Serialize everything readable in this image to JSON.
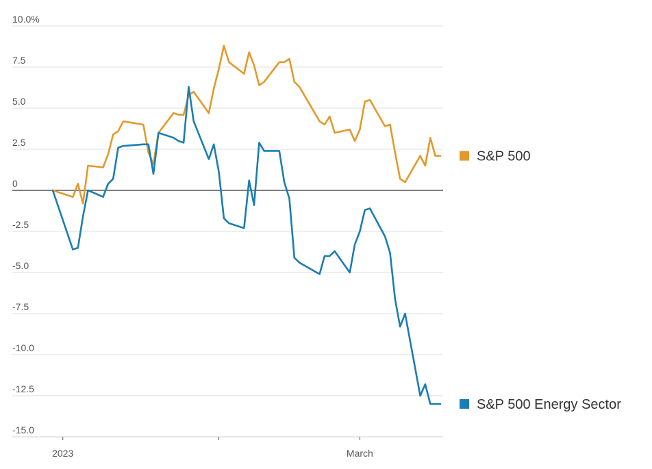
{
  "chart_data": {
    "type": "line",
    "title": "",
    "xlabel": "",
    "ylabel": "",
    "ylim": [
      -15,
      10
    ],
    "yticks": [
      {
        "value": 10,
        "label": "10.0%"
      },
      {
        "value": 7.5,
        "label": "7.5"
      },
      {
        "value": 5,
        "label": "5.0"
      },
      {
        "value": 2.5,
        "label": "2.5"
      },
      {
        "value": 0,
        "label": "0"
      },
      {
        "value": -2.5,
        "label": "-2.5"
      },
      {
        "value": -5,
        "label": "-5.0"
      },
      {
        "value": -7.5,
        "label": "-7.5"
      },
      {
        "value": -10,
        "label": "-10.0"
      },
      {
        "value": -12.5,
        "label": "-12.5"
      },
      {
        "value": -15,
        "label": "-15.0"
      }
    ],
    "xlim": [
      "2022-12-30",
      "2023-03-17"
    ],
    "xticks": [
      {
        "date": "2023-01-01",
        "label": "2023"
      },
      {
        "date": "2023-02-01",
        "label": ""
      },
      {
        "date": "2023-03-01",
        "label": "March"
      }
    ],
    "grid": true,
    "legend": "right, at series end",
    "x": [
      "2022-12-30",
      "2023-01-03",
      "2023-01-04",
      "2023-01-05",
      "2023-01-06",
      "2023-01-09",
      "2023-01-10",
      "2023-01-11",
      "2023-01-12",
      "2023-01-13",
      "2023-01-17",
      "2023-01-18",
      "2023-01-19",
      "2023-01-20",
      "2023-01-23",
      "2023-01-24",
      "2023-01-25",
      "2023-01-26",
      "2023-01-27",
      "2023-01-30",
      "2023-01-31",
      "2023-02-01",
      "2023-02-02",
      "2023-02-03",
      "2023-02-06",
      "2023-02-07",
      "2023-02-08",
      "2023-02-09",
      "2023-02-10",
      "2023-02-13",
      "2023-02-14",
      "2023-02-15",
      "2023-02-16",
      "2023-02-17",
      "2023-02-21",
      "2023-02-22",
      "2023-02-23",
      "2023-02-24",
      "2023-02-27",
      "2023-02-28",
      "2023-03-01",
      "2023-03-02",
      "2023-03-03",
      "2023-03-06",
      "2023-03-07",
      "2023-03-08",
      "2023-03-09",
      "2023-03-10",
      "2023-03-13",
      "2023-03-14",
      "2023-03-15",
      "2023-03-16",
      "2023-03-17"
    ],
    "series": [
      {
        "name": "S&P 500",
        "color": "#e3992b",
        "values": [
          0,
          -0.4,
          0.4,
          -0.8,
          1.5,
          1.4,
          2.2,
          3.4,
          3.6,
          4.2,
          4.0,
          2.3,
          1.6,
          3.5,
          4.7,
          4.6,
          4.6,
          5.8,
          6.0,
          4.7,
          6.2,
          7.4,
          8.8,
          7.8,
          7.1,
          8.4,
          7.6,
          6.4,
          6.6,
          7.8,
          7.8,
          8.0,
          6.6,
          6.3,
          4.2,
          4.0,
          4.5,
          3.5,
          3.7,
          3.0,
          3.7,
          5.4,
          5.5,
          3.9,
          4.0,
          2.3,
          0.7,
          0.5,
          2.1,
          1.5,
          3.2,
          2.1,
          2.1
        ]
      },
      {
        "name": "S&P 500 Energy Sector",
        "color": "#1a7db3",
        "values": [
          0,
          -3.6,
          -3.5,
          -1.6,
          0,
          -0.4,
          0.4,
          0.7,
          2.6,
          2.7,
          2.8,
          2.8,
          1.0,
          3.5,
          3.2,
          3.0,
          2.9,
          6.3,
          4.2,
          1.9,
          2.8,
          1.1,
          -1.7,
          -2.0,
          -2.3,
          0.6,
          -0.9,
          2.9,
          2.4,
          2.4,
          0.5,
          -0.5,
          -4.1,
          -4.4,
          -5.1,
          -4.0,
          -4.0,
          -3.7,
          -5.0,
          -3.3,
          -2.5,
          -1.2,
          -1.1,
          -2.8,
          -3.8,
          -6.6,
          -8.3,
          -7.5,
          -12.5,
          -11.8,
          -13.0,
          -13.0,
          -13.0
        ]
      }
    ]
  }
}
